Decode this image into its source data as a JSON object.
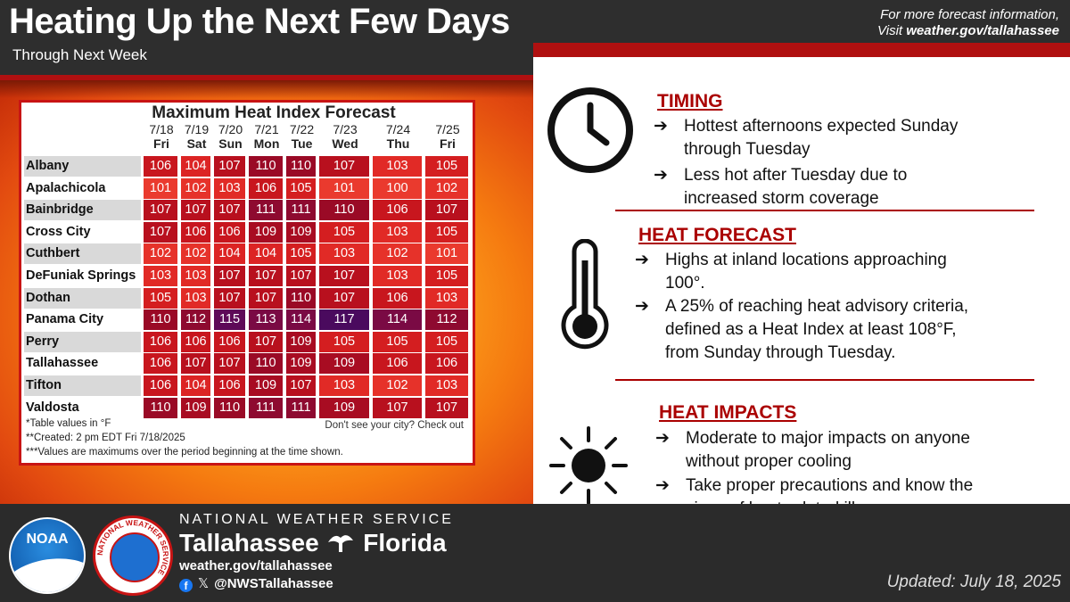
{
  "header": {
    "title": "Heating Up the Next Few Days",
    "subtitle": "Through Next Week",
    "more_info_line1": "For more forecast information,",
    "more_info_prefix": "Visit ",
    "more_info_url": "weather.gov/tallahassee"
  },
  "table": {
    "title": "Maximum Heat Index Forecast",
    "columns": [
      {
        "date": "7/18",
        "day": "Fri"
      },
      {
        "date": "7/19",
        "day": "Sat"
      },
      {
        "date": "7/20",
        "day": "Sun"
      },
      {
        "date": "7/21",
        "day": "Mon"
      },
      {
        "date": "7/22",
        "day": "Tue"
      },
      {
        "date": "7/23",
        "day": "Wed"
      },
      {
        "date": "7/24",
        "day": "Thu"
      },
      {
        "date": "7/25",
        "day": "Fri"
      }
    ],
    "rows": [
      {
        "city": "Albany",
        "values": [
          106,
          104,
          107,
          110,
          110,
          107,
          103,
          105
        ]
      },
      {
        "city": "Apalachicola",
        "values": [
          101,
          102,
          103,
          106,
          105,
          101,
          100,
          102
        ]
      },
      {
        "city": "Bainbridge",
        "values": [
          107,
          107,
          107,
          111,
          111,
          110,
          106,
          107
        ]
      },
      {
        "city": "Cross City",
        "values": [
          107,
          106,
          106,
          109,
          109,
          105,
          103,
          105
        ]
      },
      {
        "city": "Cuthbert",
        "values": [
          102,
          102,
          104,
          104,
          105,
          103,
          102,
          101
        ]
      },
      {
        "city": "DeFuniak Springs",
        "values": [
          103,
          103,
          107,
          107,
          107,
          107,
          103,
          105
        ]
      },
      {
        "city": "Dothan",
        "values": [
          105,
          103,
          107,
          107,
          110,
          107,
          106,
          103
        ]
      },
      {
        "city": "Panama City",
        "values": [
          110,
          112,
          115,
          113,
          114,
          117,
          114,
          112
        ]
      },
      {
        "city": "Perry",
        "values": [
          106,
          106,
          106,
          107,
          109,
          105,
          105,
          105
        ]
      },
      {
        "city": "Tallahassee",
        "values": [
          106,
          107,
          107,
          110,
          109,
          109,
          106,
          106
        ]
      },
      {
        "city": "Tifton",
        "values": [
          106,
          104,
          106,
          109,
          107,
          103,
          102,
          103
        ]
      },
      {
        "city": "Valdosta",
        "values": [
          110,
          109,
          110,
          111,
          111,
          109,
          107,
          107
        ]
      }
    ],
    "note1": "*Table values in °F",
    "note2": "**Created: 2 pm EDT Fri 7/18/2025",
    "note3": "***Values are maximums over the period beginning at the time shown.",
    "checkout": "Don't see your city? Check out"
  },
  "timing": {
    "title": "TIMING",
    "b1_l1": "Hottest afternoons expected Sunday",
    "b1_l2": "through Tuesday",
    "b2_l1": "Less hot after Tuesday due to",
    "b2_l2": "increased storm coverage"
  },
  "heat_forecast": {
    "title": "HEAT FORECAST",
    "b1_l1": "Highs at inland locations approaching",
    "b1_l2": "100°.",
    "b2_l1": "A 25% of reaching heat advisory criteria,",
    "b2_l2": "defined as a Heat Index at least 108°F,",
    "b2_l3": "from Sunday through Tuesday."
  },
  "heat_impacts": {
    "title": "HEAT IMPACTS",
    "b1_l1": "Moderate to major impacts on anyone",
    "b1_l2": "without proper cooling",
    "b2_l1": "Take proper precautions and know the",
    "b2_l2": "signs of heat-related illness."
  },
  "arrow": "➔",
  "footer": {
    "agency": "NATIONAL WEATHER SERVICE",
    "office_left": "Tallahassee",
    "office_right": "Florida",
    "site": "weather.gov/tallahassee",
    "handle": "@NWSTallahassee",
    "updated": "Updated: July 18, 2025",
    "noaa_logo": "NOAA",
    "nws_seal_text": "NATIONAL WEATHER SERVICE"
  },
  "colors": {
    "accent_red": "#b01010",
    "cell_low": "#e8332a",
    "cell_high": "#3d0a5c"
  }
}
